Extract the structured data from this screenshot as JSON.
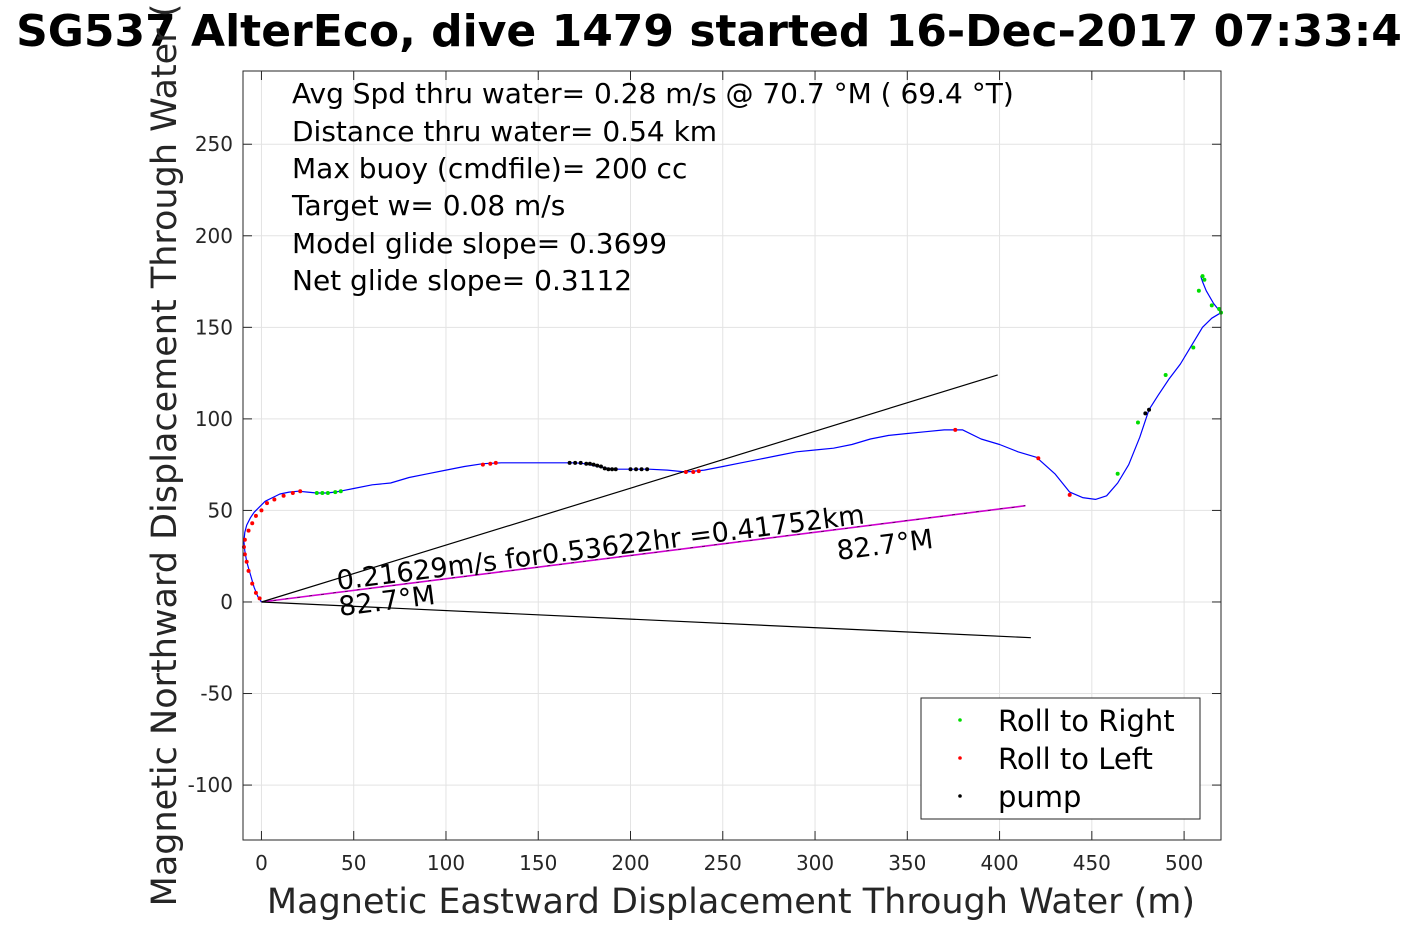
{
  "chart_data": {
    "type": "line",
    "title": "SG537 AlterEco, dive 1479 started 16-Dec-2017 07:33:4",
    "xlabel": "Magnetic Eastward Displacement Through Water (m)",
    "ylabel": "Magnetic Northward Displacement Through Water (",
    "xlim": [
      -10,
      520
    ],
    "ylim": [
      -130,
      290
    ],
    "xticks": [
      0,
      50,
      100,
      150,
      200,
      250,
      300,
      350,
      400,
      450,
      500
    ],
    "yticks": [
      -100,
      -50,
      0,
      50,
      100,
      150,
      200,
      250
    ],
    "xtick_labels": [
      "0",
      "50",
      "100",
      "150",
      "200",
      "250",
      "300",
      "350",
      "400",
      "450",
      "500"
    ],
    "ytick_labels": [
      "-100",
      "-50",
      "0",
      "50",
      "100",
      "150",
      "200",
      "250"
    ],
    "grid": true,
    "legend_position": "bottom-right",
    "annotations": [
      "Avg Spd thru water=  0.28 m/s @  70.7 °M ( 69.4 °T)",
      "Distance thru water=  0.54 km",
      "Max buoy (cmdfile)= 200 cc",
      "Target w= 0.08 m/s",
      "Model glide slope= 0.3699",
      "Net glide slope= 0.3112"
    ],
    "current_label": "0.21629m/s for0.53622hr =0.41752km",
    "current_heading_start": "82.7°M",
    "current_heading_end": "82.7°M",
    "legend": [
      {
        "label": "Roll to Right",
        "color": "#00dd00"
      },
      {
        "label": "Roll to Left",
        "color": "#ff0000"
      },
      {
        "label": "pump",
        "color": "#000000"
      }
    ],
    "colors": {
      "track": "#0000ff",
      "current": "#d000d0",
      "wedge": "#000000"
    },
    "series": [
      {
        "kind": "track",
        "x": [
          0,
          -2,
          -4,
          -6,
          -8,
          -9,
          -9.5,
          -9,
          -8,
          -6,
          -4,
          -1,
          2,
          6,
          10,
          15,
          20,
          25,
          30,
          35,
          40,
          45,
          50,
          60,
          70,
          80,
          90,
          100,
          110,
          120,
          130,
          140,
          150,
          160,
          170,
          175,
          180,
          185,
          190,
          195,
          200,
          210,
          220,
          230,
          240,
          250,
          260,
          270,
          280,
          290,
          300,
          310,
          320,
          330,
          340,
          350,
          360,
          370,
          380,
          390,
          400,
          410,
          420,
          430,
          438,
          445,
          452,
          458,
          464,
          470,
          476,
          481,
          486,
          492,
          498,
          504,
          510,
          515,
          520,
          516,
          512,
          510,
          509
        ],
        "y": [
          0,
          3,
          8,
          15,
          22,
          28,
          33,
          38,
          42,
          46,
          49,
          52,
          55,
          57,
          59,
          60,
          60.5,
          60,
          59.5,
          59.5,
          60,
          61,
          62,
          64,
          65,
          68,
          70,
          72,
          74,
          75.5,
          76,
          76,
          76,
          76,
          76,
          75.5,
          74.5,
          73.5,
          72.5,
          72.5,
          72.5,
          72.5,
          72,
          71,
          72,
          74,
          76,
          78,
          80,
          82,
          83,
          84,
          86,
          89,
          91,
          92,
          93,
          94,
          94,
          89,
          86,
          82,
          79,
          70,
          60,
          57,
          56,
          58,
          65,
          75,
          90,
          105,
          113,
          122,
          130,
          140,
          150,
          155,
          158,
          163,
          170,
          175,
          178
        ]
      },
      {
        "kind": "current",
        "x": [
          0,
          414
        ],
        "y": [
          0,
          52.6
        ]
      },
      {
        "kind": "wedge-upper",
        "x": [
          0,
          399
        ],
        "y": [
          0,
          124
        ]
      },
      {
        "kind": "wedge-lower",
        "x": [
          0,
          417
        ],
        "y": [
          0,
          -19.5
        ]
      },
      {
        "name": "Roll to Right",
        "kind": "markers",
        "x": [
          30,
          33,
          36,
          40,
          43,
          464,
          475,
          490,
          505,
          508,
          510,
          511,
          515,
          519,
          520
        ],
        "y": [
          59.5,
          59.5,
          59.5,
          60,
          60.5,
          70,
          98,
          124,
          139,
          170,
          178,
          176,
          162,
          160,
          158
        ]
      },
      {
        "name": "Roll to Left",
        "kind": "markers",
        "x": [
          -1,
          -3,
          -5,
          -7,
          -8,
          -9,
          -9.5,
          -9,
          -7,
          -5,
          -3,
          0,
          3,
          7,
          12,
          17,
          21,
          120,
          124,
          127,
          230,
          234,
          237,
          376,
          421,
          438
        ],
        "y": [
          2,
          5,
          10,
          17,
          22,
          26,
          30,
          34,
          39,
          43,
          47,
          50,
          54,
          56,
          58,
          59.5,
          60.5,
          75,
          75.5,
          76,
          71,
          71,
          71.5,
          94,
          78.5,
          58.5
        ]
      },
      {
        "name": "pump",
        "kind": "markers",
        "x": [
          167,
          170,
          173,
          176,
          178,
          180,
          182,
          184,
          186,
          188,
          190,
          192,
          200,
          203,
          206,
          209,
          479,
          481
        ],
        "y": [
          76,
          76,
          76,
          75.5,
          75.5,
          75,
          74.5,
          74,
          73,
          72.5,
          72.5,
          72.5,
          72.5,
          72.5,
          72.5,
          72.5,
          103,
          105
        ]
      }
    ]
  }
}
